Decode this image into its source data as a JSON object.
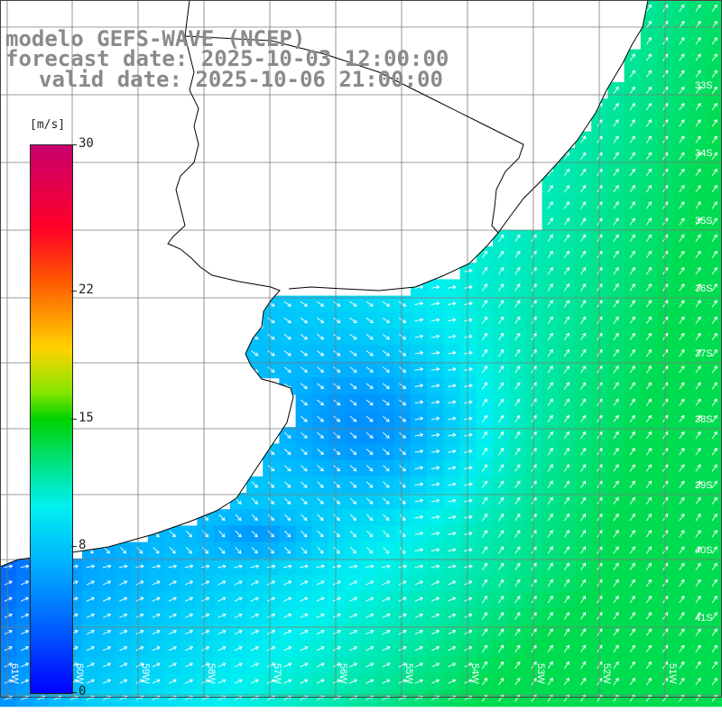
{
  "title": {
    "model": "modelo GEFS-WAVE (NCEP)",
    "forecast": "forecast date: 2025-10-03 12:00:00",
    "valid": "valid date: 2025-10-06 21:00:00"
  },
  "colorbar": {
    "unit": "[m/s]",
    "ticks": [
      "30",
      "22",
      "15",
      "8",
      "0"
    ],
    "tick_values": [
      30,
      22,
      15,
      8,
      0
    ],
    "range": [
      0,
      30
    ],
    "colors": [
      "#0000ff",
      "#0050ff",
      "#00b4ff",
      "#00f0f0",
      "#00e6a0",
      "#00d200",
      "#88e600",
      "#ffd200",
      "#ff5a00",
      "#ff0028",
      "#c8006e"
    ]
  },
  "map": {
    "land_color": "#ffffff",
    "grid_color": "#7a7a7a",
    "coast_color": "#000000",
    "arrow_color": "#ffffff",
    "lon_labels": [
      "61W",
      "60W",
      "59W",
      "58W",
      "57W",
      "56W",
      "55W",
      "54W",
      "53W",
      "52W",
      "51W"
    ],
    "lat_labels": [
      "33S",
      "34S",
      "35S",
      "36S",
      "37S",
      "38S",
      "39S",
      "40S",
      "41S"
    ]
  }
}
